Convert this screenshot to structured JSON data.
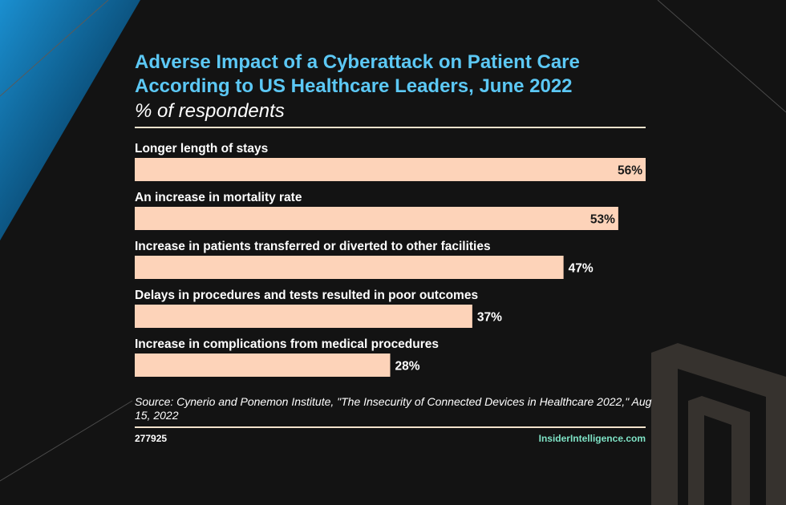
{
  "title_lines": [
    "Adverse Impact of a Cyberattack on Patient Care",
    "According to US Healthcare Leaders, June 2022"
  ],
  "subtitle": "% of respondents",
  "colors": {
    "background": "#131313",
    "title": "#5cc8f5",
    "bar": "#fdd3b9",
    "rule": "#f2e2cc",
    "brand": "#7fe3c6",
    "text": "#ffffff"
  },
  "chart_data": {
    "type": "bar",
    "orientation": "horizontal",
    "categories": [
      "Longer length of stays",
      "An increase in mortality rate",
      "Increase in patients transferred or diverted to other facilities",
      "Delays in procedures and tests resulted in poor outcomes",
      "Increase in complications from medical procedures"
    ],
    "values": [
      56,
      53,
      47,
      37,
      28
    ],
    "value_labels": [
      "56%",
      "53%",
      "47%",
      "37%",
      "28%"
    ],
    "unit": "%",
    "xlim": [
      0,
      56
    ]
  },
  "source": "Source: Cynerio and Ponemon Institute, \"The Insecurity of Connected Devices in Healthcare 2022,\" Aug 15, 2022",
  "chart_id": "277925",
  "brand": "InsiderIntelligence.com"
}
